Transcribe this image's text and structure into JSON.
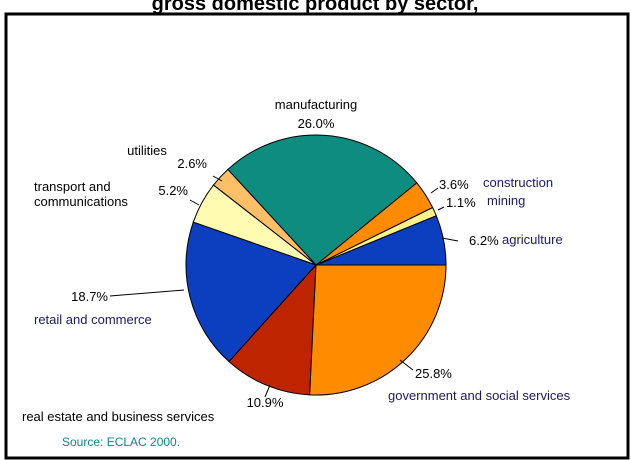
{
  "page": {
    "top_title_fragment": "gross domestic product by sector, ",
    "source": "Source: ECLAC 2000."
  },
  "colors": {
    "frame": "#000000",
    "slice_outline": "#000000",
    "category_text": "#1a1a66",
    "source_text": "#0a8a8a",
    "label_text": "#000000"
  },
  "chart_data": {
    "type": "pie",
    "title": "",
    "start": "east, counter-clockwise",
    "slices": [
      {
        "label": "agriculture",
        "value": 6.2,
        "value_label": "6.2%",
        "color": "#0b3fbf",
        "label_color": "#1a1a66"
      },
      {
        "label": "mining",
        "value": 1.1,
        "value_label": "1.1%",
        "color": "#fff38a",
        "label_color": "#1a1a66"
      },
      {
        "label": "construction",
        "value": 3.6,
        "value_label": "3.6%",
        "color": "#ff8c00",
        "label_color": "#1a1a66"
      },
      {
        "label": "manufacturing",
        "value": 26.0,
        "value_label": "26.0%",
        "color": "#0e8c80",
        "label_color": "#000000"
      },
      {
        "label": "utilities",
        "value": 2.6,
        "value_label": "2.6%",
        "color": "#ffbf66",
        "label_color": "#000000"
      },
      {
        "label": "transport and communications",
        "value": 5.2,
        "value_label": "5.2%",
        "color": "#fffbb0",
        "label_color": "#000000"
      },
      {
        "label": "retail and commerce",
        "value": 18.7,
        "value_label": "18.7%",
        "color": "#0b3fbf",
        "label_color": "#1a1a66"
      },
      {
        "label": "real estate and business services",
        "value": 10.9,
        "value_label": "10.9%",
        "color": "#bf2400",
        "label_color": "#000000"
      },
      {
        "label": "government and social services",
        "value": 25.8,
        "value_label": "25.8%",
        "color": "#ff8c00",
        "label_color": "#1a1a66"
      }
    ]
  }
}
